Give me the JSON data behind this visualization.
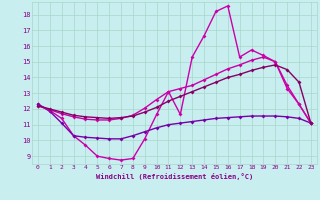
{
  "xlabel": "Windchill (Refroidissement éolien,°C)",
  "background_color": "#c8eef0",
  "grid_color": "#a8d8c8",
  "xlim": [
    -0.5,
    23.5
  ],
  "ylim": [
    8.5,
    18.8
  ],
  "yticks": [
    9,
    10,
    11,
    12,
    13,
    14,
    15,
    16,
    17,
    18
  ],
  "xticks": [
    0,
    1,
    2,
    3,
    4,
    5,
    6,
    7,
    8,
    9,
    10,
    11,
    12,
    13,
    14,
    15,
    16,
    17,
    18,
    19,
    20,
    21,
    22,
    23
  ],
  "series": [
    {
      "x": [
        0,
        1,
        2,
        3,
        4,
        5,
        6,
        7,
        8,
        9,
        10,
        11,
        12,
        13,
        14,
        15,
        16,
        17,
        18,
        19,
        20,
        21,
        22,
        23
      ],
      "y": [
        12.3,
        11.9,
        11.4,
        10.3,
        9.7,
        9.0,
        8.85,
        8.75,
        8.85,
        10.1,
        11.65,
        13.1,
        11.65,
        15.3,
        16.65,
        18.2,
        18.55,
        15.3,
        15.75,
        15.4,
        15.0,
        13.3,
        12.3,
        11.1
      ],
      "color": "#cc00aa",
      "lw": 1.0
    },
    {
      "x": [
        0,
        1,
        2,
        3,
        4,
        5,
        6,
        7,
        8,
        9,
        10,
        11,
        12,
        13,
        14,
        15,
        16,
        17,
        18,
        19,
        20,
        21,
        22,
        23
      ],
      "y": [
        12.3,
        11.85,
        11.1,
        10.3,
        10.2,
        10.15,
        10.1,
        10.1,
        10.3,
        10.55,
        10.8,
        11.0,
        11.1,
        11.2,
        11.3,
        11.4,
        11.45,
        11.5,
        11.55,
        11.55,
        11.55,
        11.5,
        11.4,
        11.1
      ],
      "color": "#7700aa",
      "lw": 1.0
    },
    {
      "x": [
        0,
        1,
        2,
        3,
        4,
        5,
        6,
        7,
        8,
        9,
        10,
        11,
        12,
        13,
        14,
        15,
        16,
        17,
        18,
        19,
        20,
        21,
        22,
        23
      ],
      "y": [
        12.2,
        11.95,
        11.7,
        11.5,
        11.35,
        11.3,
        11.3,
        11.4,
        11.6,
        12.05,
        12.6,
        13.1,
        13.3,
        13.5,
        13.85,
        14.2,
        14.55,
        14.8,
        15.1,
        15.3,
        15.0,
        13.5,
        12.3,
        11.1
      ],
      "color": "#cc00aa",
      "lw": 1.0
    },
    {
      "x": [
        0,
        1,
        2,
        3,
        4,
        5,
        6,
        7,
        8,
        9,
        10,
        11,
        12,
        13,
        14,
        15,
        16,
        17,
        18,
        19,
        20,
        21,
        22,
        23
      ],
      "y": [
        12.2,
        12.0,
        11.8,
        11.6,
        11.5,
        11.45,
        11.4,
        11.45,
        11.55,
        11.8,
        12.1,
        12.5,
        12.8,
        13.1,
        13.4,
        13.7,
        14.0,
        14.2,
        14.45,
        14.65,
        14.8,
        14.5,
        13.7,
        11.1
      ],
      "color": "#880066",
      "lw": 1.0
    }
  ]
}
